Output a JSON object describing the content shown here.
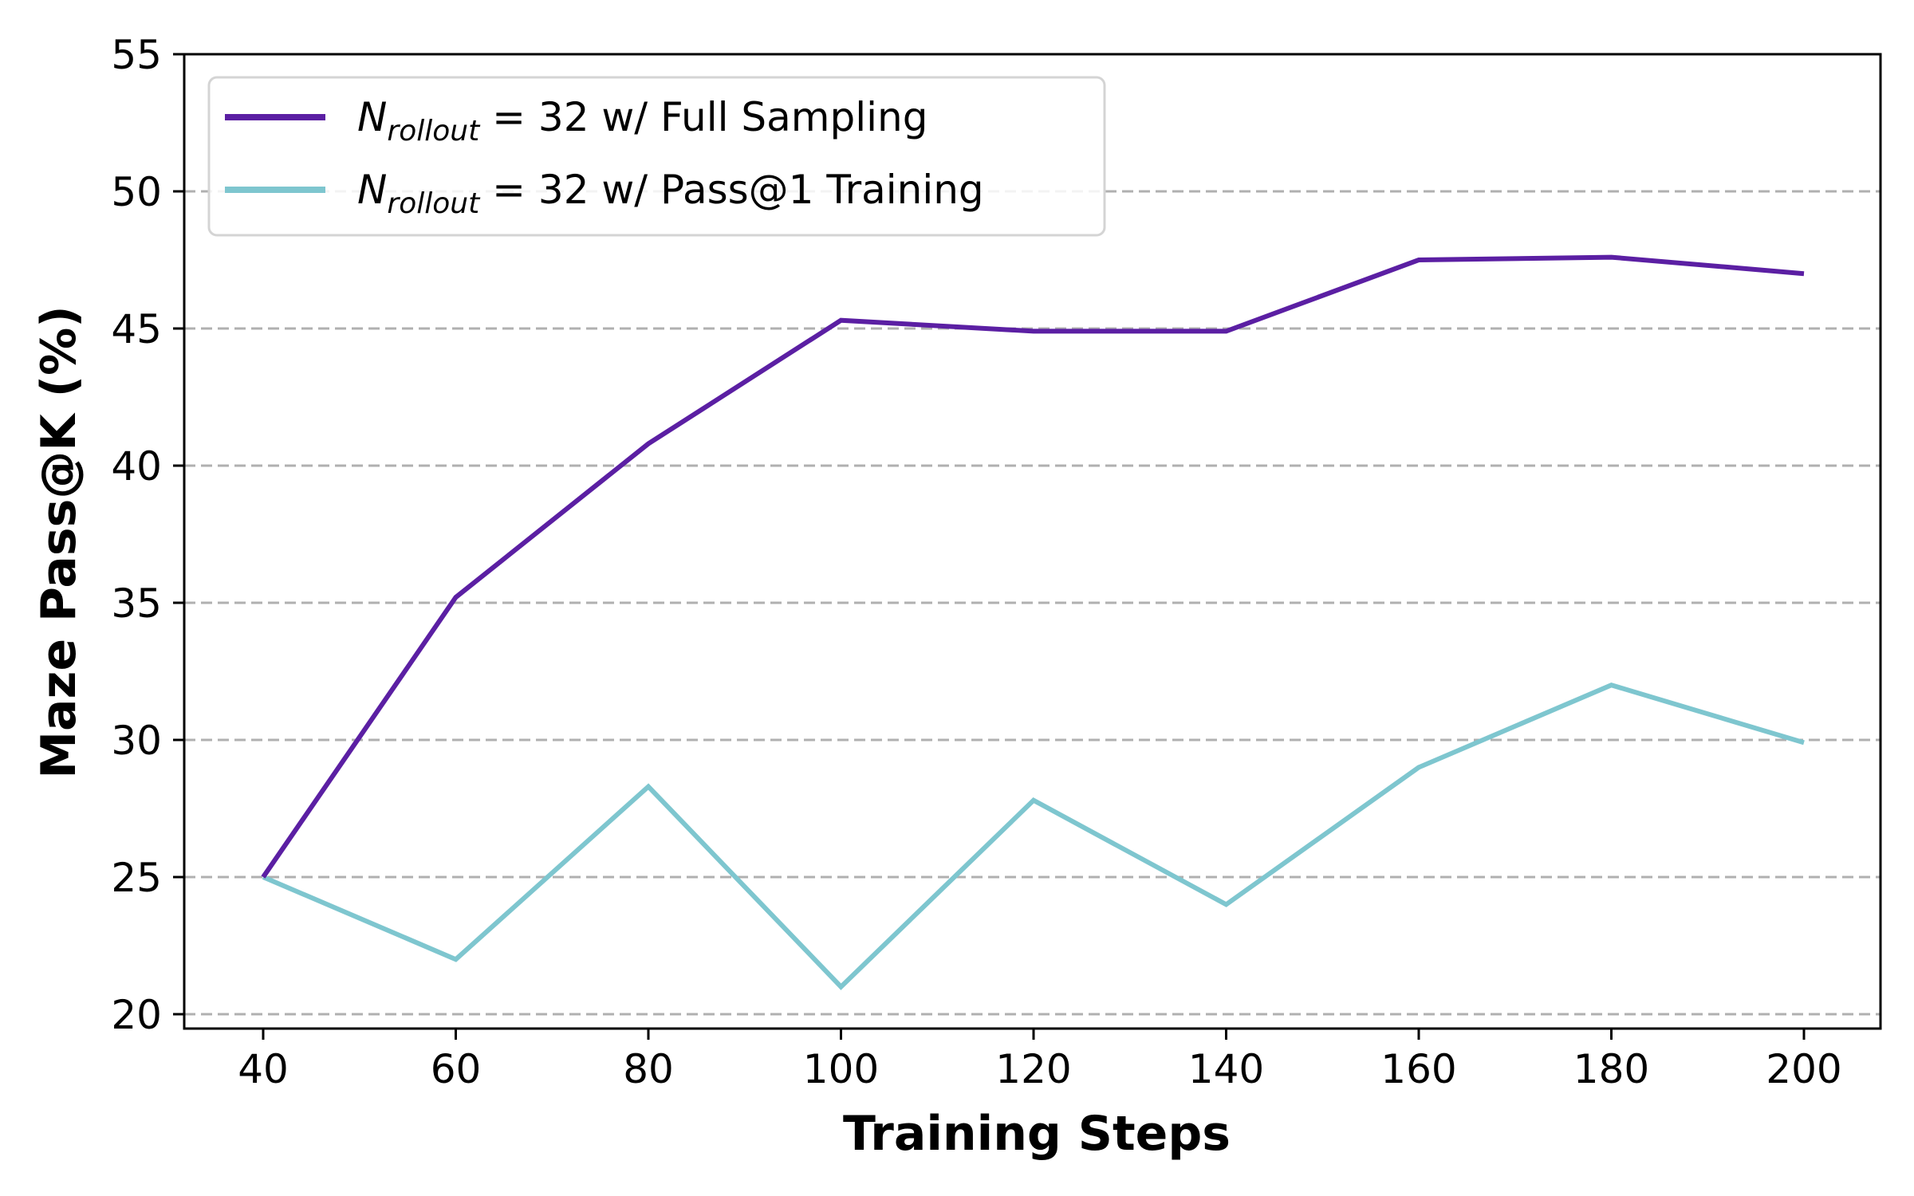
{
  "chart_data": {
    "type": "line",
    "title": "",
    "xlabel": "Training Steps",
    "ylabel": "Maze Pass@K (%)",
    "x": [
      40,
      60,
      80,
      100,
      120,
      140,
      160,
      180,
      200
    ],
    "xticks": [
      "40",
      "60",
      "80",
      "100",
      "120",
      "140",
      "160",
      "180",
      "200"
    ],
    "yticks": [
      "20",
      "25",
      "30",
      "35",
      "40",
      "45",
      "50",
      "55"
    ],
    "ylim": [
      20,
      55
    ],
    "xlim": [
      30,
      210
    ],
    "grid": "horizontal dashed",
    "legend_position": "top-left",
    "series": [
      {
        "name": "N_rollout = 32 w/ Full Sampling",
        "legend_N": "N",
        "legend_sub": "rollout",
        "legend_rest": " = 32 w/ Full Sampling",
        "color": "#5b1fa3",
        "values": [
          25.0,
          35.2,
          40.8,
          45.3,
          44.9,
          44.9,
          47.5,
          47.6,
          47.0
        ]
      },
      {
        "name": "N_rollout = 32 w/ Pass@1 Training",
        "legend_N": "N",
        "legend_sub": "rollout",
        "legend_rest": " = 32 w/ Pass@1 Training",
        "color": "#7ec6cf",
        "values": [
          25.0,
          22.0,
          28.3,
          21.0,
          27.8,
          24.0,
          29.0,
          32.0,
          29.9
        ]
      }
    ]
  }
}
